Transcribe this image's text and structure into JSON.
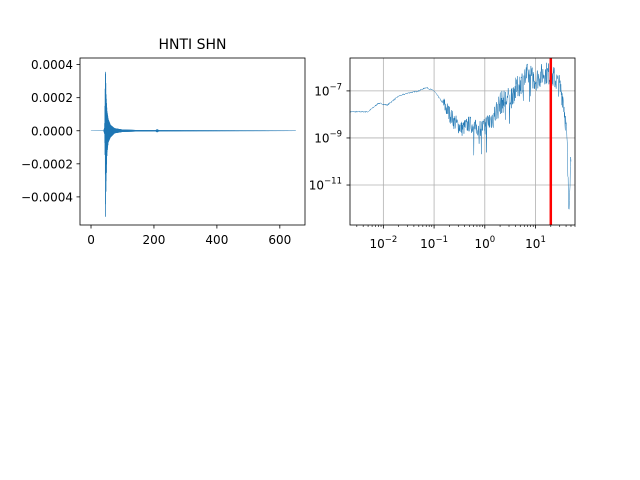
{
  "figure": {
    "background": "#ffffff"
  },
  "chart_data": [
    {
      "type": "line",
      "title": "HNTI SHN",
      "xlabel": "",
      "ylabel": "",
      "xlim": [
        -35,
        680
      ],
      "ylim": [
        -0.00057,
        0.00044
      ],
      "grid": false,
      "color": "#1f77b4",
      "xticks": [
        0,
        200,
        400,
        600
      ],
      "xtick_labels": [
        "0",
        "200",
        "400",
        "600"
      ],
      "yticks": [
        0.0004,
        0.0002,
        0.0,
        -0.0002,
        -0.0004
      ],
      "ytick_labels": [
        "0.0004",
        "0.0002",
        "0.0000",
        "−0.0002",
        "−0.0004"
      ],
      "envelope": [
        {
          "x": 0,
          "upper": 5e-07,
          "lower": -5e-07
        },
        {
          "x": 40,
          "upper": 1e-06,
          "lower": -1e-06
        },
        {
          "x": 43,
          "upper": 2e-05,
          "lower": -2e-05
        },
        {
          "x": 45,
          "upper": 0.00028,
          "lower": -0.0002
        },
        {
          "x": 46,
          "upper": 0.00039,
          "lower": -0.00052
        },
        {
          "x": 48,
          "upper": 0.00022,
          "lower": -0.00033
        },
        {
          "x": 51,
          "upper": 0.00012,
          "lower": -0.00014
        },
        {
          "x": 55,
          "upper": 7e-05,
          "lower": -7e-05
        },
        {
          "x": 62,
          "upper": 3.5e-05,
          "lower": -4e-05
        },
        {
          "x": 75,
          "upper": 1.5e-05,
          "lower": -1.5e-05
        },
        {
          "x": 100,
          "upper": 7e-06,
          "lower": -7e-06
        },
        {
          "x": 150,
          "upper": 4e-06,
          "lower": -4e-06
        },
        {
          "x": 205,
          "upper": 3e-06,
          "lower": -3e-06
        },
        {
          "x": 210,
          "upper": 9e-06,
          "lower": -9e-06
        },
        {
          "x": 216,
          "upper": 3e-06,
          "lower": -3e-06
        },
        {
          "x": 300,
          "upper": 2.5e-06,
          "lower": -2.5e-06
        },
        {
          "x": 450,
          "upper": 2e-06,
          "lower": -2e-06
        },
        {
          "x": 650,
          "upper": 1.5e-06,
          "lower": -1.5e-06
        }
      ]
    },
    {
      "type": "line",
      "title": "",
      "xlabel": "",
      "ylabel": "",
      "xscale": "log",
      "yscale": "log",
      "xlim": [
        0.0022,
        60
      ],
      "ylim": [
        2e-13,
        2.5e-06
      ],
      "grid": true,
      "color": "#1f77b4",
      "marker_line": {
        "x": 20,
        "color": "#ff0000"
      },
      "xticks": [
        0.01,
        0.1,
        1,
        10
      ],
      "xtick_labels": [
        {
          "base": "10",
          "exp": "−2"
        },
        {
          "base": "10",
          "exp": "−1"
        },
        {
          "base": "10",
          "exp": "0"
        },
        {
          "base": "10",
          "exp": "1"
        }
      ],
      "yticks": [
        1e-07,
        1e-09,
        1e-11
      ],
      "ytick_labels": [
        {
          "base": "10",
          "exp": "−7"
        },
        {
          "base": "10",
          "exp": "−9"
        },
        {
          "base": "10",
          "exp": "−11"
        }
      ],
      "spectrum": [
        {
          "x": 0.0022,
          "y": 1.3e-08
        },
        {
          "x": 0.005,
          "y": 1.3e-08
        },
        {
          "x": 0.008,
          "y": 3e-08
        },
        {
          "x": 0.012,
          "y": 2.5e-08
        },
        {
          "x": 0.02,
          "y": 6e-08
        },
        {
          "x": 0.03,
          "y": 8e-08
        },
        {
          "x": 0.05,
          "y": 1e-07
        },
        {
          "x": 0.07,
          "y": 1.4e-07
        },
        {
          "x": 0.1,
          "y": 1e-07
        },
        {
          "x": 0.15,
          "y": 3e-08
        },
        {
          "x": 0.25,
          "y": 5e-09
        },
        {
          "x": 0.35,
          "y": 2.5e-09
        },
        {
          "x": 0.5,
          "y": 4e-09
        },
        {
          "x": 0.7,
          "y": 2.5e-09
        },
        {
          "x": 1.0,
          "y": 3e-09
        },
        {
          "x": 1.5,
          "y": 8e-09
        },
        {
          "x": 2.0,
          "y": 3e-08
        },
        {
          "x": 3.0,
          "y": 5e-08
        },
        {
          "x": 5.0,
          "y": 2e-07
        },
        {
          "x": 7.0,
          "y": 5e-07
        },
        {
          "x": 10.0,
          "y": 3e-07
        },
        {
          "x": 15.0,
          "y": 6e-07
        },
        {
          "x": 20.0,
          "y": 5e-07
        },
        {
          "x": 25.0,
          "y": 3e-07
        },
        {
          "x": 30.0,
          "y": 1.5e-07
        },
        {
          "x": 35.0,
          "y": 5e-08
        },
        {
          "x": 40.0,
          "y": 3e-09
        },
        {
          "x": 42.0,
          "y": 5e-10
        },
        {
          "x": 45.0,
          "y": 1e-12
        },
        {
          "x": 48.0,
          "y": 3e-11
        },
        {
          "x": 50.0,
          "y": 2e-10
        }
      ]
    }
  ]
}
